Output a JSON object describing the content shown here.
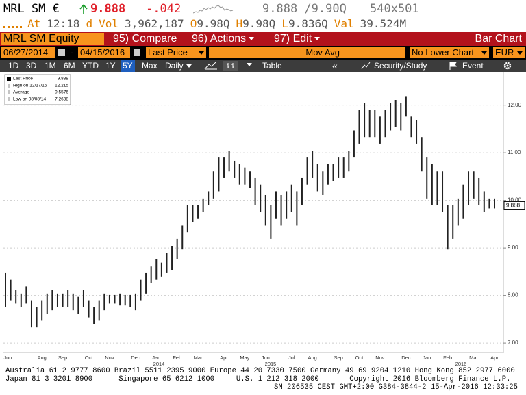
{
  "ui": {
    "ticker": "MRL SM €",
    "last": "9.888",
    "change": "-.042",
    "bid_ask": "9.888 /9.90Q",
    "size": "540x501",
    "line2": [
      "At",
      "12:18",
      "d",
      "Vol",
      "3,962,187",
      "O",
      "9.98Q",
      "H",
      "9.98Q",
      "L",
      "9.836Q",
      "Val",
      "39.524M"
    ],
    "security": "MRL SM Equity",
    "menu": [
      "95) Compare",
      "96) Actions",
      "97) Edit"
    ],
    "view": "Bar Chart",
    "start_date": "06/27/2014",
    "dash": "-",
    "end_date": "04/15/2016",
    "field": "Last Price",
    "study": "Mov Avg",
    "lower": "No Lower Chart",
    "currency": "EUR",
    "periods": [
      "1D",
      "3D",
      "1M",
      "6M",
      "YTD",
      "1Y",
      "5Y",
      "Max"
    ],
    "frequency": "Daily",
    "table": "Table",
    "back": "«",
    "security_study": "Security/Study",
    "event": "Event"
  },
  "chart_data": {
    "type": "range_bar",
    "color": "#222222",
    "grid": true,
    "legend": [
      {
        "label": "Last Price",
        "value": 9.888
      },
      {
        "label": "High on 12/17/15",
        "value": 12.215
      },
      {
        "label": "Average",
        "value": 9.5576
      },
      {
        "label": "Low on 08/08/14",
        "value": 7.2638
      }
    ],
    "last_price": 9.888,
    "categories": [
      null,
      "Jun ...",
      null,
      null,
      null,
      null,
      null,
      "Aug",
      null,
      null,
      null,
      "Sep",
      null,
      null,
      null,
      null,
      "Oct",
      null,
      null,
      null,
      "Nov",
      null,
      null,
      null,
      null,
      "Dec",
      null,
      null,
      null,
      "Jan",
      null,
      null,
      null,
      "Feb",
      null,
      null,
      null,
      "Mar",
      null,
      null,
      null,
      null,
      "Apr",
      null,
      null,
      null,
      "May",
      null,
      null,
      null,
      "Jun",
      null,
      null,
      null,
      null,
      "Jul",
      null,
      null,
      null,
      "Aug",
      null,
      null,
      null,
      null,
      "Sep",
      null,
      null,
      null,
      "Oct",
      null,
      null,
      null,
      "Nov",
      null,
      null,
      null,
      null,
      "Dec",
      null,
      null,
      null,
      "Jan",
      null,
      null,
      null,
      "Feb",
      null,
      null,
      null,
      null,
      "Mar",
      null,
      null,
      null,
      "Apr"
    ],
    "years": [
      "2014",
      "2015",
      "2016"
    ],
    "high": [
      8.47,
      8.33,
      8.11,
      8.04,
      8.19,
      7.9,
      7.76,
      7.9,
      8.04,
      8.11,
      8.04,
      8.04,
      8.11,
      8.04,
      7.97,
      8.11,
      7.9,
      7.76,
      7.9,
      8.04,
      8.01,
      8.01,
      8.04,
      8.01,
      8.01,
      8.04,
      8.33,
      8.47,
      8.61,
      8.76,
      8.69,
      8.9,
      9.04,
      9.19,
      9.47,
      9.9,
      9.9,
      9.9,
      10.04,
      10.19,
      10.61,
      10.9,
      10.9,
      11.04,
      10.83,
      10.76,
      10.69,
      10.61,
      10.47,
      10.33,
      10.11,
      9.9,
      10.19,
      10.11,
      10.19,
      10.33,
      10.19,
      10.47,
      10.9,
      11.04,
      10.76,
      10.61,
      10.76,
      10.76,
      10.9,
      10.9,
      11.04,
      11.47,
      11.9,
      12.04,
      11.9,
      11.9,
      11.76,
      11.9,
      12.04,
      12.11,
      12.04,
      12.19,
      11.76,
      11.69,
      11.33,
      10.9,
      10.76,
      10.61,
      10.61,
      9.9,
      9.9,
      10.04,
      10.33,
      10.61,
      10.61,
      10.47,
      10.19,
      10.04,
      10.04
    ],
    "low": [
      7.76,
      7.9,
      7.83,
      7.76,
      7.83,
      7.33,
      7.33,
      7.47,
      7.61,
      7.69,
      7.76,
      7.76,
      7.76,
      7.69,
      7.61,
      7.76,
      7.54,
      7.4,
      7.47,
      7.69,
      7.83,
      7.83,
      7.79,
      7.79,
      7.76,
      7.69,
      7.9,
      8.04,
      8.26,
      8.33,
      8.4,
      8.47,
      8.54,
      8.76,
      8.97,
      9.33,
      9.54,
      9.61,
      9.76,
      9.9,
      10.04,
      10.19,
      10.47,
      10.61,
      10.47,
      10.33,
      10.33,
      10.26,
      9.9,
      9.76,
      9.47,
      9.19,
      9.61,
      9.47,
      9.61,
      9.76,
      9.47,
      9.9,
      10.33,
      10.47,
      10.19,
      10.11,
      10.33,
      10.4,
      10.47,
      10.47,
      10.61,
      10.9,
      11.19,
      11.33,
      11.33,
      11.33,
      11.19,
      11.33,
      11.47,
      11.54,
      11.47,
      11.76,
      11.33,
      11.19,
      10.61,
      10.04,
      9.9,
      9.9,
      9.76,
      8.97,
      9.19,
      9.47,
      9.61,
      9.9,
      10.04,
      9.9,
      9.76,
      9.83,
      9.83
    ],
    "ylim": [
      6.8,
      12.7
    ],
    "yticks": [
      {
        "value": 7,
        "label": "7.00"
      },
      {
        "value": 8,
        "label": "8.00"
      },
      {
        "value": 9,
        "label": "9.00"
      },
      {
        "value": 10,
        "label": "10.00"
      },
      {
        "value": 11,
        "label": "11.00"
      },
      {
        "value": 12,
        "label": "12.00"
      }
    ]
  },
  "footer": [
    "Australia 61 2 9777 8600 Brazil 5511 2395 9000 Europe 44 20 7330 7500 Germany 49 69 9204 1210 Hong Kong 852 2977 6000",
    "Japan 81 3 3201 8900      Singapore 65 6212 1000     U.S. 1 212 318 2000       Copyright 2016 Bloomberg Finance L.P.",
    "SN 206535 CEST GMT+2:00 G384-3844-2 15-Apr-2016 12:33:25"
  ]
}
